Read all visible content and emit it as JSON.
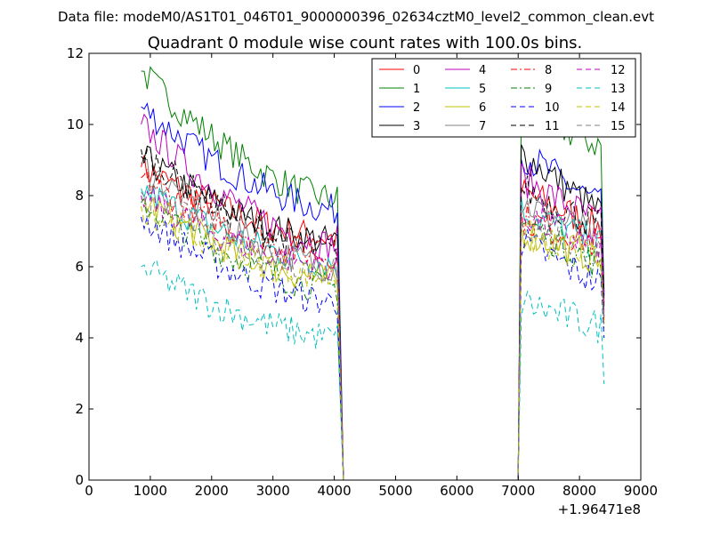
{
  "chart_data": {
    "type": "line",
    "suptitle": "Data file: modeM0/AS1T01_046T01_9000000396_02634cztM0_level2_common_clean.evt",
    "title": "Quadrant 0 module wise count rates with 100.0s bins.",
    "xlabel": "",
    "ylabel": "",
    "x_offset_label": "+1.96471e8",
    "xlim": [
      0,
      9000
    ],
    "ylim": [
      0,
      12
    ],
    "xticks": [
      0,
      1000,
      2000,
      3000,
      4000,
      5000,
      6000,
      7000,
      8000,
      9000
    ],
    "xtick_labels": [
      "0",
      "1000",
      "2000",
      "3000",
      "4000",
      "5000",
      "6000",
      "7000",
      "8000",
      "9000"
    ],
    "yticks": [
      0,
      2,
      4,
      6,
      8,
      10,
      12
    ],
    "ytick_labels": [
      "0",
      "2",
      "4",
      "6",
      "8",
      "10",
      "12"
    ],
    "grid": false,
    "legend": {
      "position": "top-right",
      "columns": 4
    },
    "segment_1": {
      "x_start": 850,
      "x_end": 4050,
      "drop_to_zero_at": 4150
    },
    "gap": {
      "x_start": 4150,
      "x_end": 7000
    },
    "segment_2": {
      "x_start": 7050,
      "x_end": 8350,
      "last_point_x": 8400
    },
    "series": [
      {
        "name": "0",
        "color": "#ff0000",
        "dash": "solid",
        "start": 8.8,
        "end1": 6.8,
        "peak2": 8.1,
        "end2": 7.1,
        "last": 5.0
      },
      {
        "name": "1",
        "color": "#008000",
        "dash": "solid",
        "start": 11.5,
        "end1": 7.9,
        "peak2": 10.4,
        "end2": 9.4,
        "last": 5.1
      },
      {
        "name": "2",
        "color": "#0000ff",
        "dash": "solid",
        "start": 10.5,
        "end1": 7.6,
        "peak2": 9.2,
        "end2": 7.7,
        "last": 5.2
      },
      {
        "name": "3",
        "color": "#000000",
        "dash": "solid",
        "start": 9.1,
        "end1": 6.7,
        "peak2": 9.2,
        "end2": 7.5,
        "last": 5.3
      },
      {
        "name": "4",
        "color": "#bf00bf",
        "dash": "solid",
        "start": 10.0,
        "end1": 6.6,
        "peak2": 8.5,
        "end2": 7.2,
        "last": 4.9
      },
      {
        "name": "5",
        "color": "#00bfbf",
        "dash": "solid",
        "start": 8.2,
        "end1": 6.1,
        "peak2": 7.6,
        "end2": 6.6,
        "last": 4.6
      },
      {
        "name": "6",
        "color": "#bfbf00",
        "dash": "solid",
        "start": 7.9,
        "end1": 5.6,
        "peak2": 7.0,
        "end2": 6.2,
        "last": 4.4
      },
      {
        "name": "7",
        "color": "#808080",
        "dash": "solid",
        "start": 8.9,
        "end1": 6.0,
        "peak2": 7.8,
        "end2": 6.8,
        "last": 4.7
      },
      {
        "name": "8",
        "color": "#ff0000",
        "dash": "dashdot",
        "start": 8.5,
        "end1": 6.3,
        "peak2": 7.4,
        "end2": 6.6,
        "last": 4.5
      },
      {
        "name": "9",
        "color": "#008000",
        "dash": "dashdot",
        "start": 7.8,
        "end1": 5.4,
        "peak2": 7.3,
        "end2": 6.0,
        "last": 4.2
      },
      {
        "name": "10",
        "color": "#0000ff",
        "dash": "dashed",
        "start": 7.4,
        "end1": 5.0,
        "peak2": 6.7,
        "end2": 5.5,
        "last": 4.0
      },
      {
        "name": "11",
        "color": "#000000",
        "dash": "dashed",
        "start": 9.3,
        "end1": 6.4,
        "peak2": 8.2,
        "end2": 7.1,
        "last": 4.8
      },
      {
        "name": "12",
        "color": "#bf00bf",
        "dash": "dashed",
        "start": 8.0,
        "end1": 6.0,
        "peak2": 7.5,
        "end2": 6.5,
        "last": 4.6
      },
      {
        "name": "13",
        "color": "#00bfbf",
        "dash": "dashed",
        "start": 6.0,
        "end1": 4.0,
        "peak2": 5.0,
        "end2": 4.3,
        "last": 2.7
      },
      {
        "name": "14",
        "color": "#bfbf00",
        "dash": "dashed",
        "start": 7.7,
        "end1": 5.7,
        "peak2": 6.9,
        "end2": 6.1,
        "last": 4.3
      },
      {
        "name": "15",
        "color": "#808080",
        "dash": "dashed",
        "start": 8.1,
        "end1": 5.9,
        "peak2": 7.2,
        "end2": 6.3,
        "last": 4.4
      }
    ]
  }
}
